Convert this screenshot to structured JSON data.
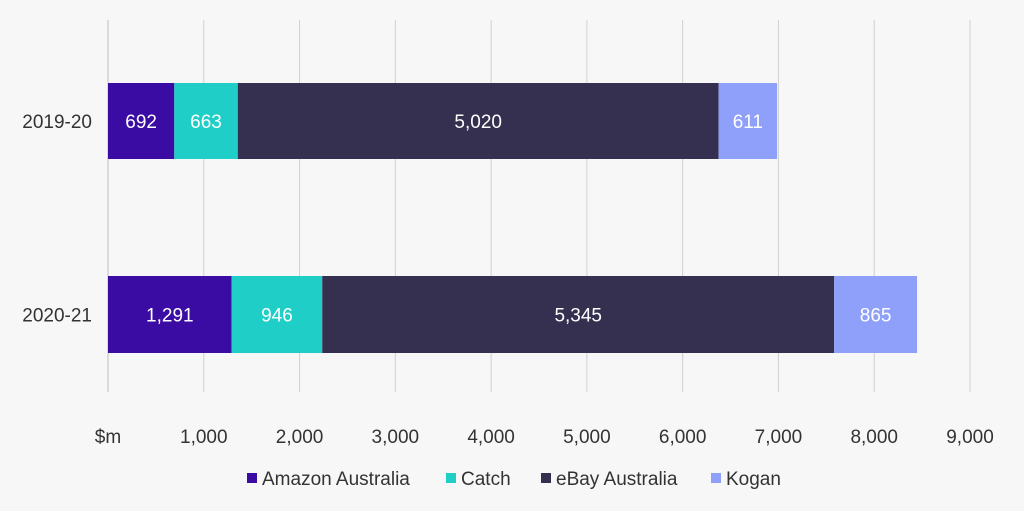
{
  "chart_data": {
    "type": "bar",
    "orientation": "horizontal",
    "stacked": true,
    "categories": [
      "2019-20",
      "2020-21"
    ],
    "series": [
      {
        "name": "Amazon Australia",
        "values": [
          692,
          1291
        ],
        "labels": [
          "692",
          "1,291"
        ],
        "color": "#3a0ca3"
      },
      {
        "name": "Catch",
        "values": [
          663,
          946
        ],
        "labels": [
          "663",
          "946"
        ],
        "color": "#1fcfc7"
      },
      {
        "name": "eBay Australia",
        "values": [
          5020,
          5345
        ],
        "labels": [
          "5,020",
          "5,345"
        ],
        "color": "#352f50"
      },
      {
        "name": "Kogan",
        "values": [
          611,
          865
        ],
        "labels": [
          "611",
          "865"
        ],
        "color": "#8fa0fb"
      }
    ],
    "xlim": [
      0,
      9000
    ],
    "xticks": [
      0,
      1000,
      2000,
      3000,
      4000,
      5000,
      6000,
      7000,
      8000,
      9000
    ],
    "xtick_labels": [
      "$m",
      "1,000",
      "2,000",
      "3,000",
      "4,000",
      "5,000",
      "6,000",
      "7,000",
      "8,000",
      "9,000"
    ],
    "grid": true,
    "legend_position": "bottom"
  }
}
